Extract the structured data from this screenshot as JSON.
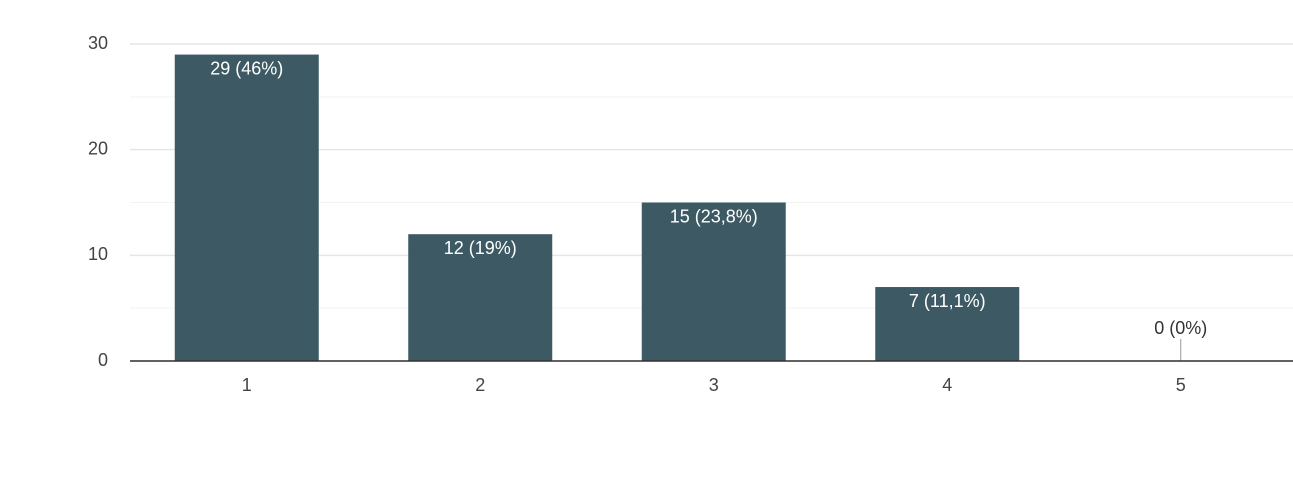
{
  "chart_data": {
    "type": "bar",
    "categories": [
      "1",
      "2",
      "3",
      "4",
      "5"
    ],
    "values": [
      29,
      12,
      15,
      7,
      0
    ],
    "value_labels": [
      "29 (46%)",
      "12 (19%)",
      "15 (23,8%)",
      "7 (11,1%)",
      "0 (0%)"
    ],
    "color": "#3d5a64",
    "ylim": [
      0,
      30
    ],
    "yticks": [
      0,
      10,
      20,
      30
    ],
    "minor_yticks": [
      5,
      15,
      25
    ],
    "grid": true
  }
}
